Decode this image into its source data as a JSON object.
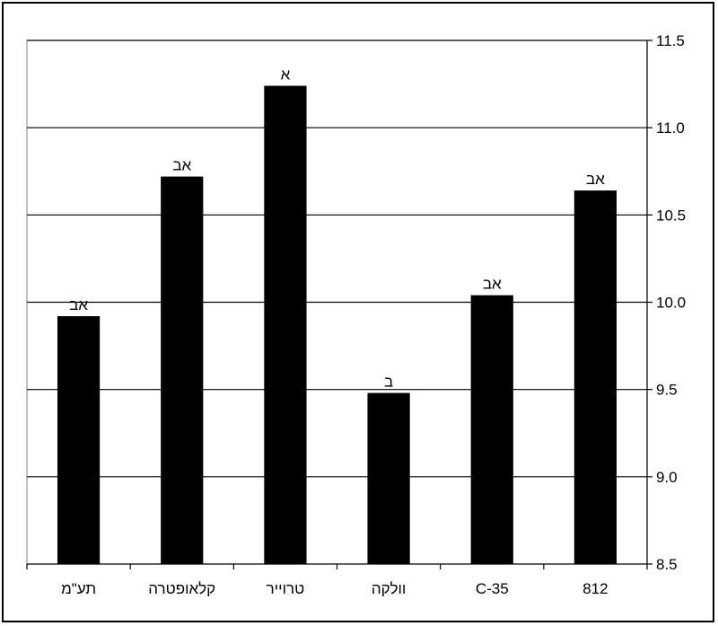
{
  "chart_data": {
    "type": "bar",
    "categories": [
      "תע\"מ",
      "קלאופטרה",
      "טרוייר",
      "וולקה",
      "C-35",
      "812"
    ],
    "values": [
      9.92,
      10.72,
      11.24,
      9.48,
      10.04,
      10.64
    ],
    "data_labels": [
      "אב",
      "אב",
      "א",
      "ב",
      "אב",
      "אב"
    ],
    "y_ticks": [
      "8.5",
      "9.0",
      "9.5",
      "10.0",
      "10.5",
      "11.0",
      "11.5"
    ],
    "ylim": [
      8.5,
      11.5
    ],
    "y_axis_side": "right",
    "grid": true,
    "title": "",
    "xlabel": "",
    "ylabel": "",
    "colors": {
      "bar": "#000000",
      "grid": "#000000",
      "background": "#ffffff"
    }
  }
}
